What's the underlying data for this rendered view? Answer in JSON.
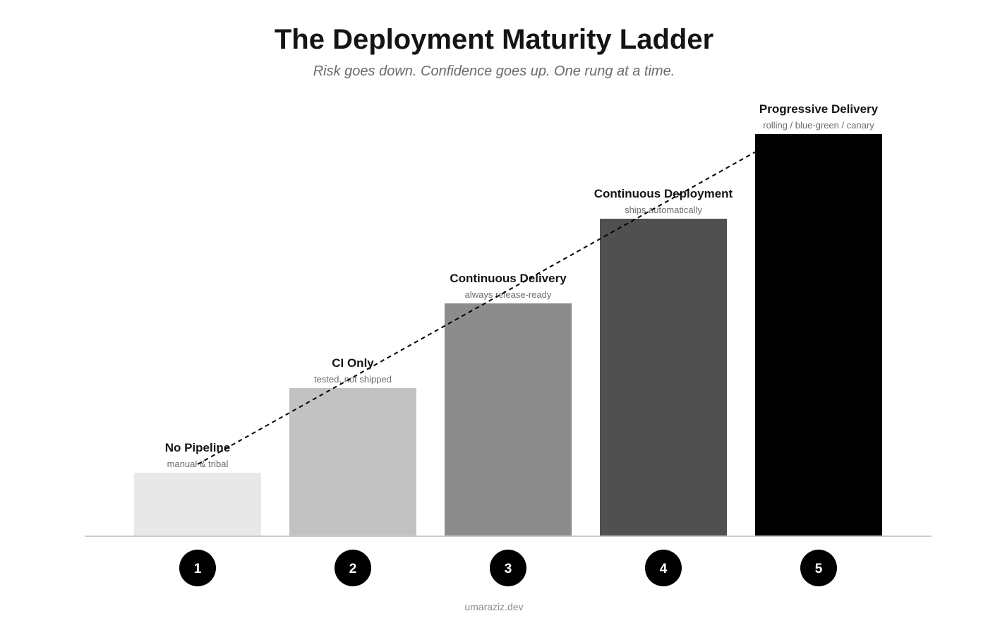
{
  "title": "The Deployment Maturity Ladder",
  "subtitle": "Risk goes down. Confidence goes up. One rung at a time.",
  "footer": "umaraziz.dev",
  "colors": {
    "axis": "#cccccc",
    "label": "#141414",
    "sublabel": "#6b6b6b",
    "badge_fill": "#000000",
    "badge_text": "#ffffff",
    "trend": "#000000"
  },
  "steps": [
    {
      "number": "1",
      "label": "No Pipeline",
      "sublabel": "manual & tribal",
      "level": 1,
      "color": "#e8e8e8"
    },
    {
      "number": "2",
      "label": "CI Only",
      "sublabel": "tested, not shipped",
      "level": 2,
      "color": "#c2c2c2"
    },
    {
      "number": "3",
      "label": "Continuous Delivery",
      "sublabel": "always release-ready",
      "level": 3,
      "color": "#8c8c8c"
    },
    {
      "number": "4",
      "label": "Continuous Deployment",
      "sublabel": "ships automatically",
      "level": 4,
      "color": "#505050"
    },
    {
      "number": "5",
      "label": "Progressive Delivery",
      "sublabel": "rolling / blue-green / canary",
      "level": 5,
      "color": "#000000"
    }
  ]
}
